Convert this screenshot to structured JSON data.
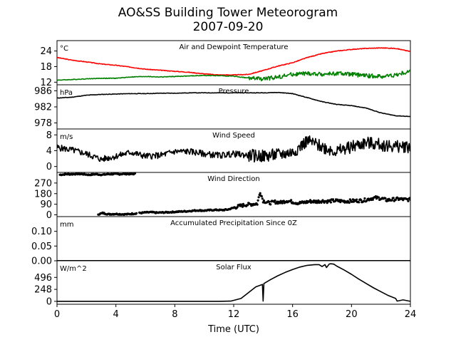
{
  "figure": {
    "title_line1": "AO&SS Building Tower Meteorogram",
    "title_line2": "2007-09-20",
    "xlabel": "Time (UTC)"
  },
  "chart_data": [
    {
      "type": "line",
      "title": "Air and Dewpoint Temperature",
      "unit_label": "°C",
      "x_range": [
        0,
        24
      ],
      "ylim": [
        11,
        28
      ],
      "yticks": [
        12,
        18,
        24
      ],
      "series": [
        {
          "color": "#ff0000",
          "x": [
            0,
            1,
            2,
            3,
            4,
            5,
            6,
            7,
            8,
            9,
            10,
            11,
            12,
            13,
            14,
            15,
            16,
            17,
            18,
            19,
            20,
            21,
            22,
            23,
            24
          ],
          "y": [
            21.5,
            20.5,
            19.8,
            19,
            18.5,
            17.8,
            17,
            16.6,
            16.2,
            15.8,
            15.2,
            14.8,
            14.8,
            15,
            16.5,
            18.2,
            19.5,
            21.5,
            23,
            24,
            24.6,
            25,
            25.2,
            25,
            23.8
          ]
        },
        {
          "color": "#008000",
          "x": [
            0,
            1,
            2,
            3,
            4,
            5,
            6,
            7,
            8,
            9,
            10,
            11,
            12,
            13,
            14,
            15,
            16,
            17,
            18,
            19,
            20,
            21,
            22,
            23,
            24
          ],
          "y": [
            12.8,
            13,
            13.3,
            13.5,
            13.5,
            14,
            14.2,
            14,
            14.2,
            14.4,
            14.6,
            14.5,
            14.3,
            13.6,
            13.2,
            14,
            15,
            15.3,
            15,
            15.4,
            15,
            14.5,
            14.2,
            14.8,
            16.2
          ]
        }
      ]
    },
    {
      "type": "line",
      "title": "Pressure",
      "unit_label": "hPa",
      "x_range": [
        0,
        24
      ],
      "ylim": [
        976.5,
        987.5
      ],
      "yticks": [
        978,
        982,
        986
      ],
      "series": [
        {
          "color": "#000000",
          "x": [
            0,
            1,
            2,
            3,
            4,
            5,
            6,
            7,
            8,
            9,
            10,
            11,
            12,
            13,
            14,
            15,
            16,
            17,
            18,
            19,
            20,
            21,
            22,
            23,
            24
          ],
          "y": [
            984.2,
            984.4,
            984.9,
            985.1,
            985.2,
            985.3,
            985.3,
            985.4,
            985.4,
            985.5,
            985.5,
            985.5,
            985.5,
            985.5,
            985.5,
            985.6,
            985.3,
            984.3,
            983.3,
            982.6,
            982.3,
            981.7,
            980.5,
            979.8,
            979.6
          ]
        }
      ]
    },
    {
      "type": "line",
      "title": "Wind Speed",
      "unit_label": "m/s",
      "x_range": [
        0,
        24
      ],
      "ylim": [
        -1.5,
        9.5
      ],
      "yticks": [
        0,
        4,
        8
      ],
      "series": [
        {
          "color": "#000000",
          "x": [
            0,
            1,
            2,
            3,
            4,
            5,
            6,
            7,
            8,
            9,
            10,
            11,
            12,
            13,
            14,
            15,
            16,
            17,
            18,
            19,
            20,
            21,
            22,
            23,
            24
          ],
          "y": [
            4.8,
            4.2,
            3.2,
            1.8,
            2.6,
            3.6,
            2.6,
            2.8,
            3.8,
            3.8,
            3.2,
            2.8,
            3.2,
            2.8,
            2.6,
            3,
            3.6,
            6.5,
            5,
            3.8,
            5,
            6,
            5.5,
            5,
            5.1
          ]
        }
      ]
    },
    {
      "type": "scatter",
      "title": "Wind Direction",
      "unit_label": "",
      "x_range": [
        0,
        24
      ],
      "ylim": [
        -15,
        360
      ],
      "yticks": [
        0,
        90,
        180,
        270
      ],
      "series": [
        {
          "color": "#000000",
          "x": [
            0.2,
            0.6,
            1.0,
            1.4,
            1.8,
            2.2,
            2.6,
            3.1,
            3.4,
            3.8,
            4.2,
            4.6,
            5.0,
            5.3,
            2.8,
            3.1,
            3.5,
            4.0,
            4.4,
            4.8,
            5.2,
            5.6,
            6.0,
            6.4,
            6.8,
            7.2,
            7.6,
            8.0,
            8.4,
            8.8,
            9.2,
            9.6,
            10.0,
            10.4,
            10.8,
            11.2,
            11.6,
            12.0,
            12.4,
            12.8,
            13.2,
            13.6,
            13.8,
            14.0,
            14.4,
            14.8,
            15.2,
            15.6,
            16.0,
            16.4,
            16.8,
            17.2,
            17.6,
            18.0,
            18.4,
            18.8,
            19.2,
            19.6,
            20.0,
            20.4,
            20.8,
            21.2,
            21.6,
            22.0,
            22.4,
            22.8,
            23.2,
            23.6,
            24.0
          ],
          "y": [
            340,
            345,
            345,
            348,
            345,
            340,
            345,
            340,
            345,
            346,
            345,
            348,
            346,
            348,
            5,
            15,
            5,
            8,
            5,
            5,
            10,
            15,
            20,
            22,
            18,
            20,
            22,
            25,
            28,
            30,
            35,
            38,
            36,
            40,
            42,
            40,
            45,
            60,
            75,
            85,
            90,
            95,
            195,
            120,
            100,
            110,
            105,
            120,
            110,
            100,
            105,
            115,
            112,
            118,
            115,
            120,
            118,
            115,
            118,
            120,
            122,
            135,
            145,
            140,
            125,
            130,
            135,
            130,
            128
          ]
        }
      ]
    },
    {
      "type": "line",
      "title": "Accumulated Precipitation Since 0Z",
      "unit_label": "mm",
      "x_range": [
        0,
        24
      ],
      "ylim": [
        0,
        0.15
      ],
      "yticks": [
        0.0,
        0.05,
        0.1
      ],
      "ytick_labels": [
        "0.00",
        "0.05",
        "0.10"
      ],
      "series": [
        {
          "color": "#000000",
          "x": [
            0,
            24
          ],
          "y": [
            0,
            0
          ]
        }
      ]
    },
    {
      "type": "line",
      "title": "Solar Flux",
      "unit_label": "W/m^2",
      "x_range": [
        0,
        24
      ],
      "ylim": [
        -60,
        840
      ],
      "yticks": [
        0,
        248,
        496
      ],
      "series": [
        {
          "color": "#000000",
          "x": [
            0,
            1,
            2,
            3,
            4,
            5,
            6,
            7,
            8,
            9,
            10,
            11,
            11.8,
            12.5,
            13,
            13.5,
            13.95,
            14.0,
            14.05,
            14.5,
            15,
            15.5,
            16,
            16.5,
            17,
            17.5,
            17.8,
            18.0,
            18.2,
            18.3,
            18.5,
            18.6,
            18.8,
            19,
            19.5,
            20,
            20.5,
            21,
            21.5,
            22,
            22.5,
            23,
            23.1,
            23.5,
            24
          ],
          "y": [
            0,
            0,
            0,
            0,
            0,
            0,
            0,
            0,
            0,
            0,
            0,
            0,
            5,
            60,
            180,
            300,
            350,
            5,
            370,
            450,
            530,
            600,
            660,
            710,
            745,
            760,
            760,
            720,
            760,
            700,
            775,
            778,
            770,
            730,
            650,
            560,
            460,
            370,
            280,
            200,
            120,
            60,
            5,
            30,
            0
          ]
        }
      ]
    }
  ],
  "x_axis": {
    "ticks": [
      0,
      4,
      8,
      12,
      16,
      20,
      24
    ]
  }
}
